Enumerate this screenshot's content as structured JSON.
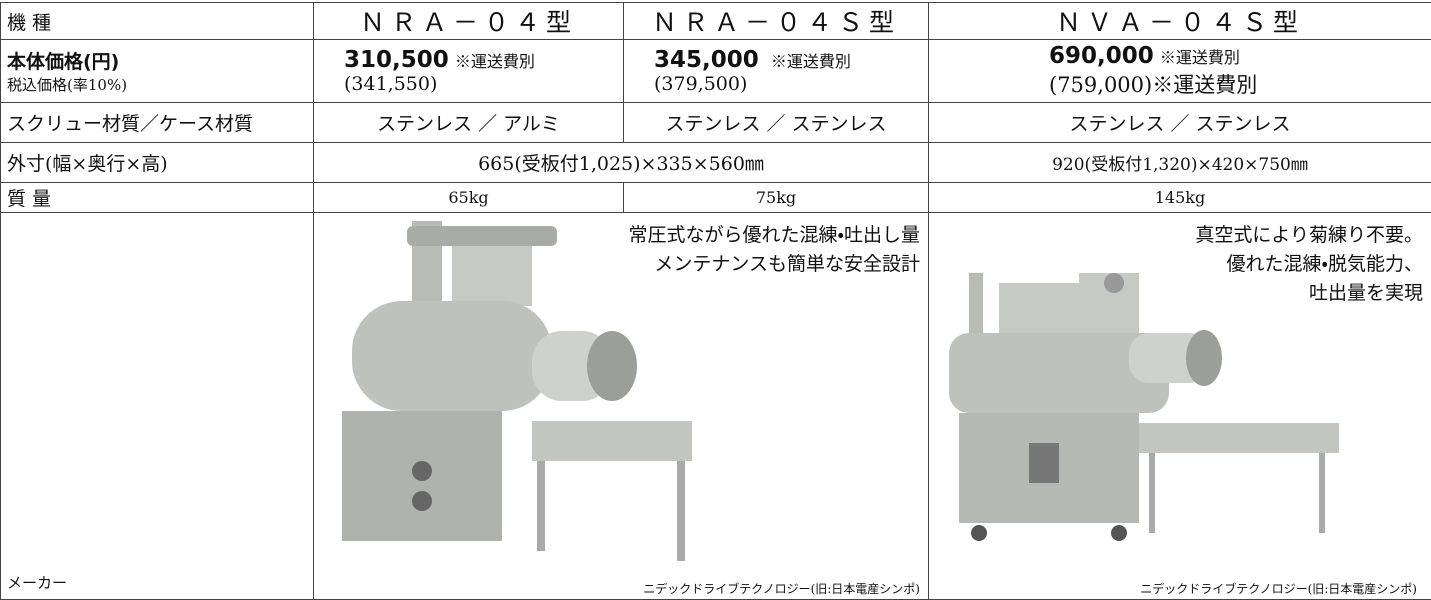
{
  "header": {
    "label": "機 種",
    "models": [
      "ＮＲＡ－０４型",
      "ＮＲＡ－０４Ｓ型",
      "ＮＶＡ－０４Ｓ型"
    ]
  },
  "price": {
    "label": "本体価格(円)",
    "sublabel": "税込価格(率10%)",
    "cells": [
      {
        "price": "310,500",
        "note": "※運送費別",
        "tax": "(341,550)"
      },
      {
        "price": "345,000",
        "note": "※運送費別",
        "tax": "(379,500)"
      },
      {
        "price": "690,000",
        "note": "※運送費別",
        "tax": "(759,000)※運送費別"
      }
    ]
  },
  "material": {
    "label": "スクリュー材質／ケース材質",
    "cells": [
      "ステンレス ／ アルミ",
      "ステンレス ／ ステンレス",
      "ステンレス ／ ステンレス"
    ]
  },
  "size": {
    "label": "外寸(幅×奥行×高)",
    "cells": [
      "665(受板付1,025)×335×560㎜",
      "920(受板付1,320)×420×750㎜"
    ]
  },
  "mass": {
    "label": "質 量",
    "cells": [
      "65kg",
      "75kg",
      "145kg"
    ]
  },
  "maker": {
    "label": "メーカー",
    "cells": [
      {
        "description": [
          "常圧式ながら優れた混練・吐出し量",
          "メンテナンスも簡単な安全設計"
        ],
        "maker": "ニデックドライブテクノロジー(旧:日本電産シンポ)"
      },
      {
        "description": [
          "真空式により菊練り不要。",
          "優れた混練・脱気能力、",
          "吐出量を実現"
        ],
        "maker": "ニデックドライブテクノロジー(旧:日本電産シンポ)"
      }
    ]
  }
}
